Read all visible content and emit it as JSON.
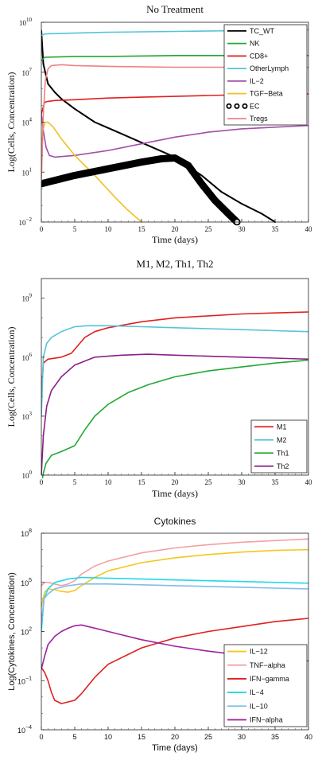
{
  "chart_data": [
    {
      "type": "line",
      "title": "No Treatment",
      "xlabel": "Time (days)",
      "ylabel": "Log(Cells, Concentration)",
      "yscale": "log",
      "xlim": [
        0,
        40
      ],
      "ylim_exp": [
        -2,
        10
      ],
      "xticks": [
        "0",
        "5",
        "10",
        "15",
        "20",
        "25",
        "30",
        "35",
        "40"
      ],
      "yticks": [
        {
          "base": "10",
          "exp": "10",
          "e": 10
        },
        {
          "base": "10",
          "exp": "7",
          "e": 7
        },
        {
          "base": "10",
          "exp": "4",
          "e": 4
        },
        {
          "base": "10",
          "exp": "1",
          "e": 1
        },
        {
          "base": "10",
          "exp": "−2",
          "e": -2
        }
      ],
      "legend_position": "top-right",
      "series": [
        {
          "name": "TC_WT",
          "color": "#000000",
          "style": "solid",
          "width": 2,
          "x": [
            0,
            0.3,
            1,
            2,
            3,
            5,
            8,
            12,
            16,
            20,
            24,
            27,
            30,
            33,
            35
          ],
          "y": [
            9.5,
            7.5,
            6.3,
            5.8,
            5.4,
            4.8,
            4.0,
            3.3,
            2.6,
            1.9,
            0.8,
            -0.2,
            -0.9,
            -1.5,
            -2.0
          ]
        },
        {
          "name": "NK",
          "color": "#22a833",
          "style": "solid",
          "width": 1.6,
          "x": [
            0,
            0.5,
            5,
            10,
            20,
            30,
            40
          ],
          "y": [
            7.7,
            7.9,
            7.95,
            7.95,
            8.0,
            8.0,
            8.0
          ]
        },
        {
          "name": "CD8+",
          "color": "#e02020",
          "style": "solid",
          "width": 1.6,
          "x": [
            0,
            0.5,
            1,
            2,
            5,
            10,
            15,
            20,
            25,
            30,
            35,
            40
          ],
          "y": [
            4.5,
            5.2,
            5.25,
            5.3,
            5.35,
            5.45,
            5.5,
            5.55,
            5.6,
            5.65,
            5.7,
            5.7
          ]
        },
        {
          "name": "OtherLymph",
          "color": "#55c4d8",
          "style": "solid",
          "width": 1.6,
          "x": [
            0,
            0.5,
            5,
            10,
            20,
            30,
            40
          ],
          "y": [
            9.2,
            9.3,
            9.35,
            9.4,
            9.45,
            9.5,
            9.55
          ]
        },
        {
          "name": "IL−2",
          "color": "#a24ea8",
          "style": "solid",
          "width": 1.6,
          "x": [
            0,
            0.3,
            0.7,
            1.2,
            2,
            5,
            10,
            15,
            20,
            25,
            30,
            35,
            40
          ],
          "y": [
            4.5,
            3.5,
            2.5,
            2.0,
            1.9,
            2.0,
            2.3,
            2.7,
            3.1,
            3.4,
            3.6,
            3.7,
            3.8
          ]
        },
        {
          "name": "TGF−Beta",
          "color": "#f0c020",
          "style": "solid",
          "width": 1.6,
          "x": [
            0,
            0.2,
            0.6,
            1,
            1.8,
            3,
            5,
            8,
            11,
            13,
            15
          ],
          "y": [
            0.5,
            3.5,
            4.0,
            4.0,
            3.7,
            3.0,
            2.0,
            0.8,
            -0.5,
            -1.3,
            -2.0
          ]
        },
        {
          "name": "EC",
          "color": "#000000",
          "style": "marker-o",
          "width": 9,
          "x": [
            0,
            5,
            10,
            15,
            18,
            20,
            22,
            24,
            26,
            28,
            29.3
          ],
          "y": [
            0.3,
            0.8,
            1.2,
            1.6,
            1.8,
            1.85,
            1.4,
            0.3,
            -0.7,
            -1.5,
            -2.0
          ]
        },
        {
          "name": "Tregs",
          "color": "#f08080",
          "style": "solid",
          "width": 1.6,
          "x": [
            0,
            0.3,
            0.6,
            1,
            1.5,
            3,
            5,
            10,
            20,
            30,
            40
          ],
          "y": [
            0.5,
            4.5,
            6.5,
            7.2,
            7.4,
            7.45,
            7.4,
            7.35,
            7.3,
            7.3,
            7.3
          ]
        }
      ]
    },
    {
      "type": "line",
      "title": "M1, M2, Th1, Th2",
      "xlabel": "Time (days)",
      "ylabel": "Log(Cells, Concentration)",
      "yscale": "log",
      "xlim": [
        0,
        40
      ],
      "ylim_exp": [
        0,
        10
      ],
      "xticks": [
        "0",
        "5",
        "10",
        "15",
        "20",
        "25",
        "30",
        "35",
        "40"
      ],
      "yticks": [
        {
          "base": "10",
          "exp": "9",
          "e": 9
        },
        {
          "base": "10",
          "exp": "6",
          "e": 6
        },
        {
          "base": "10",
          "exp": "3",
          "e": 3
        },
        {
          "base": "10",
          "exp": "0",
          "e": 0
        }
      ],
      "legend_position": "bottom-right",
      "series": [
        {
          "name": "M1",
          "color": "#e02020",
          "style": "solid",
          "width": 1.6,
          "x": [
            0,
            0.3,
            1,
            3,
            4.5,
            5.5,
            6.5,
            8,
            10,
            15,
            20,
            25,
            30,
            35,
            40
          ],
          "y": [
            4.0,
            5.7,
            5.9,
            6.0,
            6.2,
            6.6,
            7.0,
            7.3,
            7.5,
            7.8,
            8.0,
            8.1,
            8.2,
            8.25,
            8.3
          ]
        },
        {
          "name": "M2",
          "color": "#55c4d8",
          "style": "solid",
          "width": 1.6,
          "x": [
            0,
            0.3,
            0.8,
            1.5,
            3,
            5,
            7,
            10,
            15,
            20,
            25,
            30,
            35,
            40
          ],
          "y": [
            3.0,
            6.0,
            6.7,
            7.0,
            7.3,
            7.55,
            7.6,
            7.6,
            7.55,
            7.5,
            7.45,
            7.4,
            7.35,
            7.3
          ]
        },
        {
          "name": "Th1",
          "color": "#22a833",
          "style": "solid",
          "width": 1.6,
          "x": [
            0,
            0.3,
            0.7,
            1.5,
            3,
            5,
            6.5,
            8,
            10,
            13,
            16,
            20,
            25,
            30,
            35,
            40
          ],
          "y": [
            -0.5,
            0.1,
            0.6,
            1.0,
            1.2,
            1.5,
            2.3,
            3.0,
            3.6,
            4.2,
            4.6,
            5.0,
            5.3,
            5.5,
            5.7,
            5.85
          ]
        },
        {
          "name": "Th2",
          "color": "#8a1f8a",
          "style": "solid",
          "width": 1.6,
          "x": [
            0,
            0.3,
            0.8,
            1.5,
            3,
            5,
            8,
            12,
            16,
            20,
            25,
            30,
            35,
            40
          ],
          "y": [
            0.0,
            2.0,
            3.5,
            4.3,
            5.0,
            5.6,
            6.0,
            6.1,
            6.15,
            6.1,
            6.05,
            6.0,
            5.95,
            5.9
          ]
        }
      ]
    },
    {
      "type": "line",
      "title": "Cytokines",
      "xlabel": "Time (days)",
      "ylabel": "Log(Cytokines, Concentration)",
      "yscale": "log",
      "xlim": [
        0,
        40
      ],
      "ylim_exp": [
        -4,
        8
      ],
      "xticks": [
        "0",
        "5",
        "10",
        "15",
        "20",
        "25",
        "30",
        "35",
        "40"
      ],
      "yticks": [
        {
          "base": "10",
          "exp": "8",
          "e": 8
        },
        {
          "base": "10",
          "exp": "5",
          "e": 5
        },
        {
          "base": "10",
          "exp": "2",
          "e": 2
        },
        {
          "base": "10",
          "exp": "−1",
          "e": -1
        },
        {
          "base": "10",
          "exp": "−4",
          "e": -4
        }
      ],
      "legend_position": "bottom-right",
      "series": [
        {
          "name": "IL−12",
          "color": "#f5c71a",
          "style": "solid",
          "width": 1.6,
          "x": [
            0,
            0.5,
            1,
            2,
            3,
            4,
            5,
            6,
            8,
            10,
            15,
            20,
            25,
            30,
            35,
            40
          ],
          "y": [
            3.5,
            4.4,
            4.6,
            4.55,
            4.45,
            4.4,
            4.5,
            4.8,
            5.3,
            5.7,
            6.2,
            6.5,
            6.7,
            6.85,
            6.95,
            7.0
          ]
        },
        {
          "name": "TNF−alpha",
          "color": "#f4a0a0",
          "style": "solid",
          "width": 1.6,
          "x": [
            0,
            0.5,
            1,
            2,
            3,
            4,
            5,
            6,
            8,
            10,
            15,
            20,
            25,
            30,
            35,
            40
          ],
          "y": [
            4.8,
            5.0,
            5.0,
            4.9,
            4.8,
            4.9,
            5.1,
            5.5,
            6.0,
            6.3,
            6.8,
            7.1,
            7.3,
            7.45,
            7.55,
            7.65
          ]
        },
        {
          "name": "IFN−gamma",
          "color": "#e02020",
          "style": "solid",
          "width": 1.6,
          "x": [
            0,
            0.5,
            1,
            1.5,
            2,
            3,
            4,
            5,
            6,
            8,
            10,
            15,
            20,
            25,
            30,
            35,
            40
          ],
          "y": [
            -0.2,
            -0.5,
            -1.0,
            -1.7,
            -2.2,
            -2.4,
            -2.3,
            -2.2,
            -1.8,
            -0.8,
            0.0,
            1.0,
            1.6,
            2.0,
            2.3,
            2.6,
            2.8
          ]
        },
        {
          "name": "IL−4",
          "color": "#22d8e8",
          "style": "solid",
          "width": 1.6,
          "x": [
            0,
            0.4,
            1,
            2,
            4,
            6,
            10,
            15,
            20,
            25,
            30,
            35,
            40
          ],
          "y": [
            2.0,
            4.0,
            4.6,
            5.0,
            5.2,
            5.3,
            5.25,
            5.2,
            5.15,
            5.1,
            5.05,
            5.0,
            4.95
          ]
        },
        {
          "name": "IL−10",
          "color": "#7fbde8",
          "style": "solid",
          "width": 1.6,
          "x": [
            0,
            0.4,
            1,
            2,
            4,
            6,
            10,
            15,
            20,
            25,
            30,
            35,
            40
          ],
          "y": [
            2.5,
            4.0,
            4.3,
            4.6,
            4.8,
            4.9,
            4.9,
            4.85,
            4.8,
            4.75,
            4.7,
            4.65,
            4.6
          ]
        },
        {
          "name": "IFN−alpha",
          "color": "#a020a0",
          "style": "solid",
          "width": 1.6,
          "x": [
            0,
            0.5,
            1,
            2,
            3,
            4,
            5,
            6,
            7,
            9,
            12,
            15,
            20,
            25,
            30,
            35,
            40
          ],
          "y": [
            -0.3,
            0.5,
            1.2,
            1.7,
            2.0,
            2.2,
            2.35,
            2.4,
            2.3,
            2.1,
            1.8,
            1.5,
            1.1,
            0.8,
            0.55,
            0.35,
            0.2
          ]
        }
      ]
    }
  ]
}
